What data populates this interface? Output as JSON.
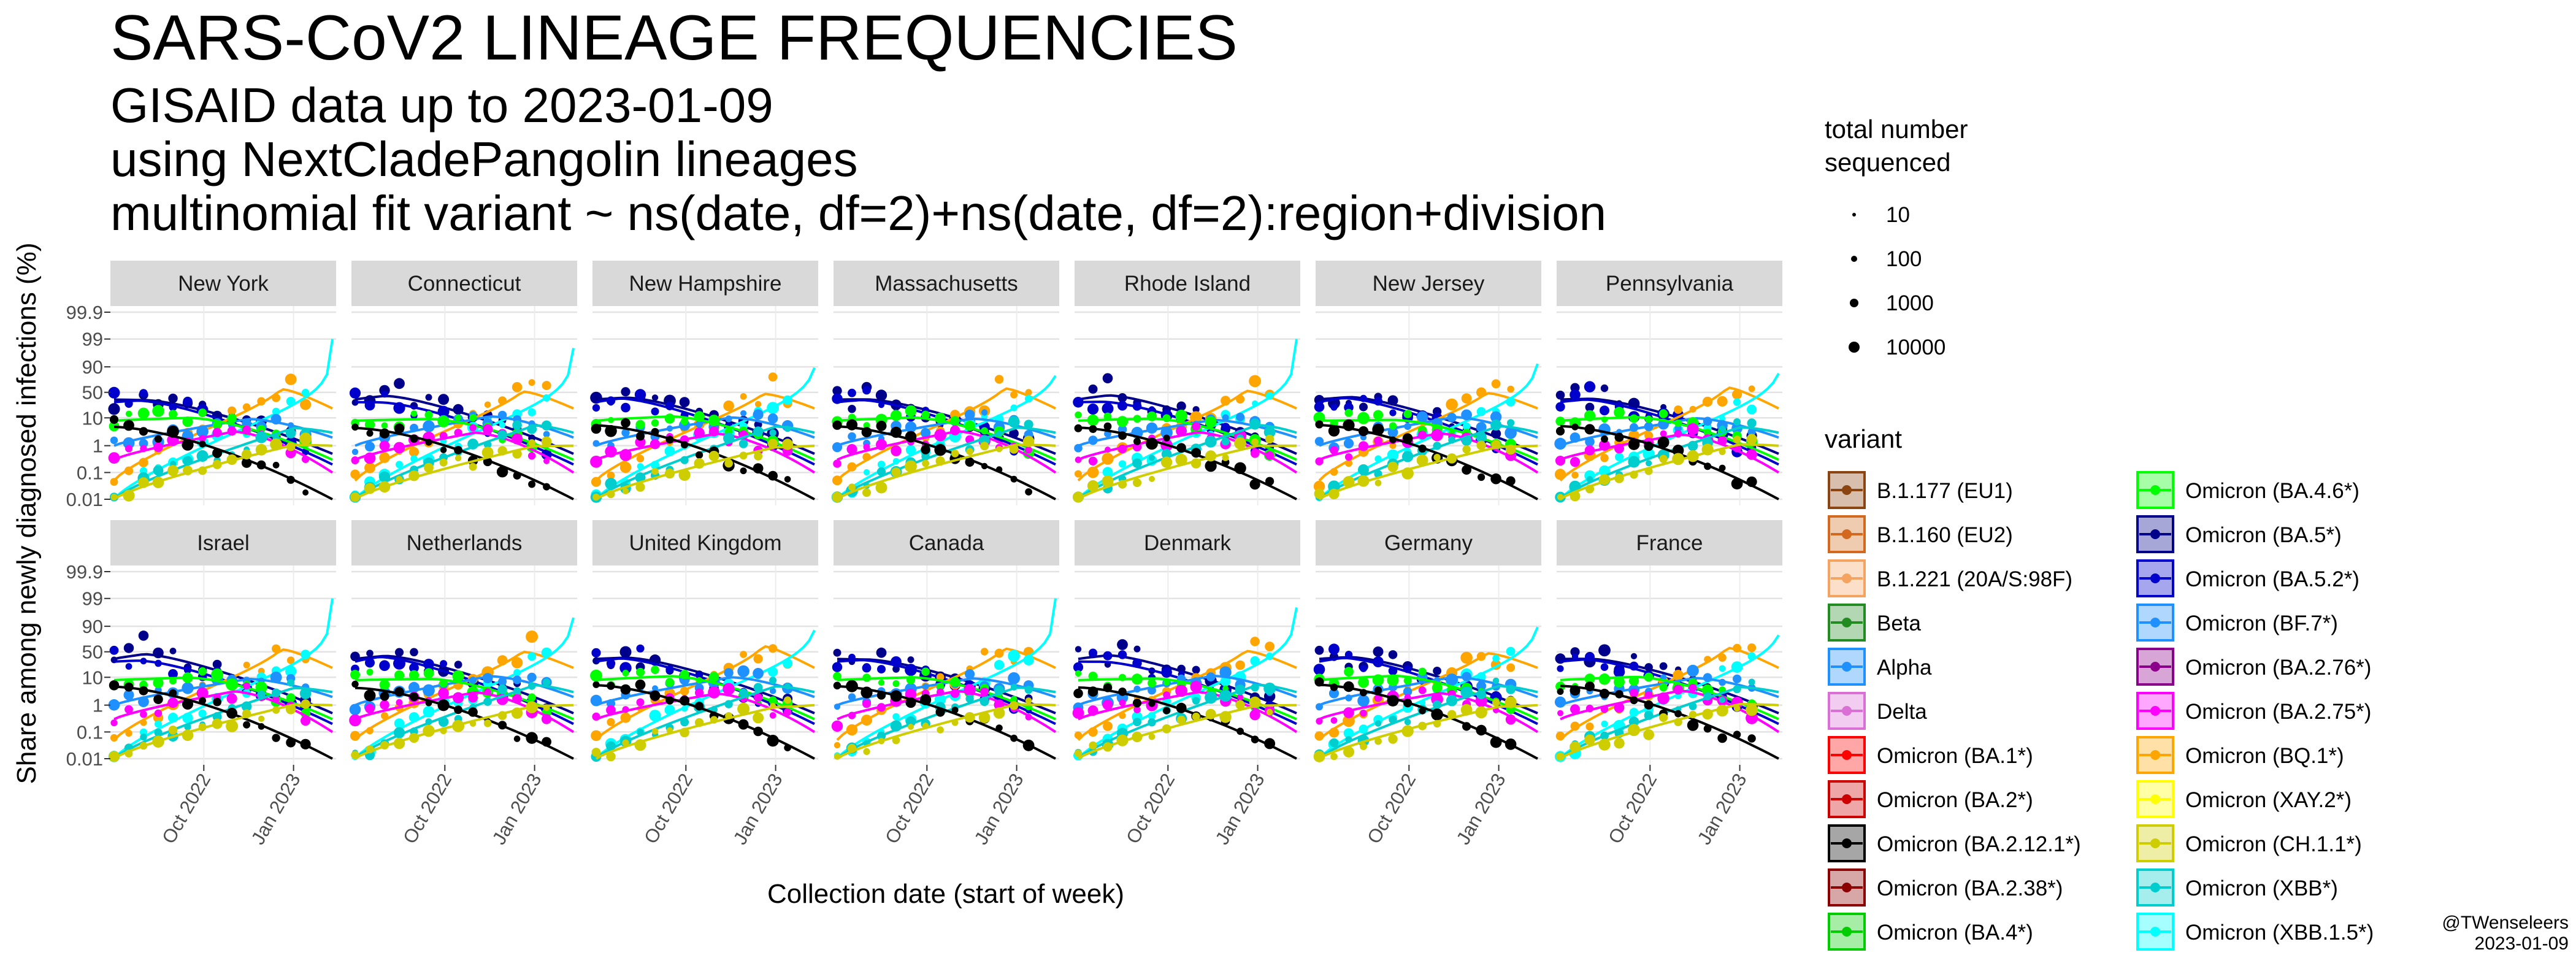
{
  "header": {
    "title": "SARS-CoV2 LINEAGE FREQUENCIES",
    "subtitle_lines": [
      "GISAID data up to 2023-01-09",
      "using NextCladePangolin lineages",
      "multinomial fit variant ~ ns(date, df=2)+ns(date, df=2):region+division"
    ]
  },
  "credit": {
    "author": "@TWenseleers",
    "date": "2023-01-09"
  },
  "chart_data": {
    "type": "line",
    "facet_layout": "2 rows x 7 columns",
    "facets": [
      "New York",
      "Connecticut",
      "New Hampshire",
      "Massachusetts",
      "Rhode Island",
      "New Jersey",
      "Pennsylvania",
      "Israel",
      "Netherlands",
      "United Kingdom",
      "Canada",
      "Denmark",
      "Germany",
      "France"
    ],
    "ylabel": "Share among newly diagnosed infections (%)",
    "xlabel": "Collection date (start of week)",
    "y_scale": "logit",
    "y_ticks": [
      "99.9",
      "99",
      "90",
      "50",
      "10",
      "1",
      "0.1",
      "0.01"
    ],
    "y_tick_values": [
      99.9,
      99,
      90,
      50,
      10,
      1,
      0.1,
      0.01
    ],
    "x_ticks": [
      "Oct 2022",
      "Jan 2023"
    ],
    "xlim": [
      "2022-07-01",
      "2023-02-10"
    ],
    "x_range_months": [
      0,
      7.3
    ],
    "x_tick_months": [
      3,
      6
    ],
    "size_legend": {
      "title_lines": [
        "total number",
        "sequenced"
      ],
      "values": [
        "10",
        "100",
        "1000",
        "10000"
      ]
    },
    "legend_title": "variant",
    "legend_placement": "right",
    "variants": [
      {
        "name": "B.1.177 (EU1)",
        "color": "#8B4513"
      },
      {
        "name": "B.1.160 (EU2)",
        "color": "#D2691E"
      },
      {
        "name": "B.1.221 (20A/S:98F)",
        "color": "#F4A460"
      },
      {
        "name": "Beta",
        "color": "#228B22"
      },
      {
        "name": "Alpha",
        "color": "#1E90FF"
      },
      {
        "name": "Delta",
        "color": "#DA70D6"
      },
      {
        "name": "Omicron (BA.1*)",
        "color": "#FF0000"
      },
      {
        "name": "Omicron (BA.2*)",
        "color": "#CD0000"
      },
      {
        "name": "Omicron (BA.2.12.1*)",
        "color": "#000000"
      },
      {
        "name": "Omicron (BA.2.38*)",
        "color": "#8B0000"
      },
      {
        "name": "Omicron (BA.4*)",
        "color": "#00CD00"
      },
      {
        "name": "Omicron (BA.4.6*)",
        "color": "#00FF00"
      },
      {
        "name": "Omicron (BA.5*)",
        "color": "#00008B"
      },
      {
        "name": "Omicron (BA.5.2*)",
        "color": "#0000CD"
      },
      {
        "name": "Omicron (BF.7*)",
        "color": "#1E90FF"
      },
      {
        "name": "Omicron (BA.2.76*)",
        "color": "#8B008B"
      },
      {
        "name": "Omicron (BA.2.75*)",
        "color": "#FF00FF"
      },
      {
        "name": "Omicron (BQ.1*)",
        "color": "#FFA500"
      },
      {
        "name": "Omicron (XAY.2*)",
        "color": "#FFFF00"
      },
      {
        "name": "Omicron (CH.1.1*)",
        "color": "#CDCD00"
      },
      {
        "name": "Omicron (XBB*)",
        "color": "#00CDCD"
      },
      {
        "name": "Omicron (XBB.1.5*)",
        "color": "#00FFFF"
      }
    ],
    "trend_lines_approx": [
      {
        "variant": "Omicron (BA.5*)",
        "start_pct": 35,
        "peak_pct": 40,
        "peak_month": 1.0,
        "end_pct": 0.5
      },
      {
        "variant": "Omicron (BA.5.2*)",
        "start_pct": 30,
        "peak_pct": 35,
        "peak_month": 0.8,
        "end_pct": 0.2
      },
      {
        "variant": "Omicron (BQ.1*)",
        "start_pct": 0.05,
        "peak_pct": 55,
        "peak_month": 5.6,
        "end_pct": 20
      },
      {
        "variant": "Omicron (XBB.1.5*)",
        "start_pct": 0.01,
        "peak_pct": 95,
        "peak_month": 7.3,
        "end_pct": 95
      },
      {
        "variant": "Omicron (BF.7*)",
        "start_pct": 1,
        "peak_pct": 10,
        "peak_month": 4.5,
        "end_pct": 2
      },
      {
        "variant": "Omicron (BA.4.6*)",
        "start_pct": 8,
        "peak_pct": 10,
        "peak_month": 2.5,
        "end_pct": 0.3
      },
      {
        "variant": "Omicron (BA.2.75*)",
        "start_pct": 0.3,
        "peak_pct": 3,
        "peak_month": 4.0,
        "end_pct": 0.1
      },
      {
        "variant": "Omicron (XBB*)",
        "start_pct": 0.01,
        "peak_pct": 5,
        "peak_month": 6.0,
        "end_pct": 3
      },
      {
        "variant": "Omicron (BA.2.12.1*)",
        "start_pct": 5,
        "peak_pct": 5,
        "peak_month": 0.0,
        "end_pct": 0.01
      },
      {
        "variant": "Omicron (CH.1.1*)",
        "start_pct": 0.01,
        "peak_pct": 1,
        "peak_month": 6.0,
        "end_pct": 1
      }
    ]
  }
}
